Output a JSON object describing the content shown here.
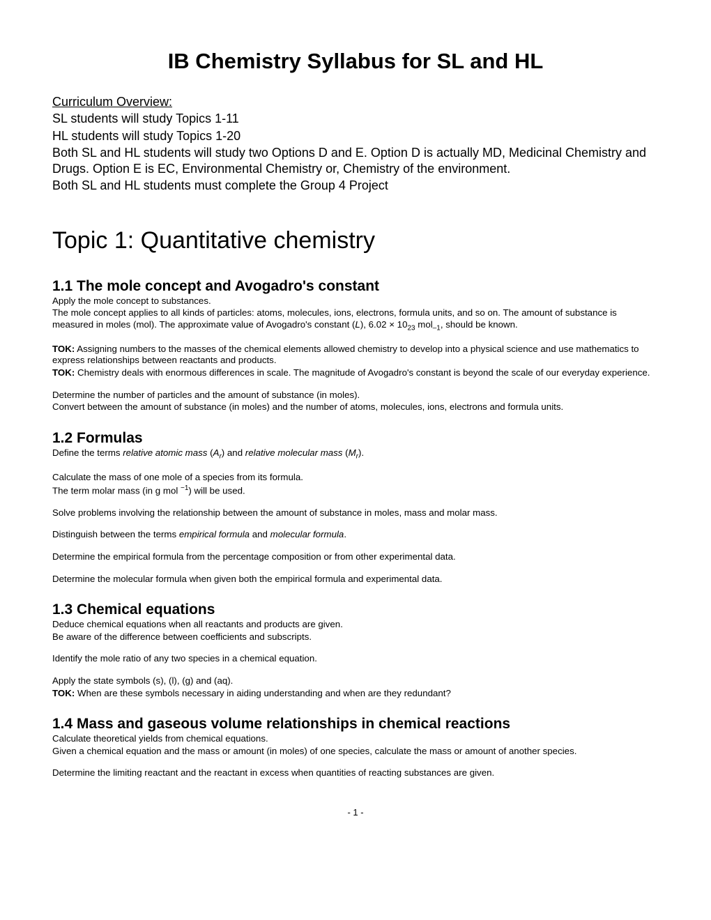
{
  "mainTitle": "IB Chemistry Syllabus for SL and HL",
  "overview": {
    "heading": "Curriculum Overview:",
    "lines": [
      "SL students will study Topics 1-11",
      "HL students will study Topics 1-20",
      "Both SL and HL students will study two Options D and E.  Option D is actually MD, Medicinal Chemistry and Drugs.  Option E is EC, Environmental Chemistry or, Chemistry of the environment.",
      "Both SL and HL students must complete the Group 4 Project"
    ]
  },
  "topicTitle": "Topic 1: Quantitative chemistry",
  "section11": {
    "heading": "1.1 The mole concept and Avogadro's constant",
    "p1": "Apply the mole concept to substances.",
    "p2a": "The mole concept applies to all kinds of particles: atoms, molecules, ions, electrons, formula units, and so on. The amount of substance is measured in moles (mol). The approximate value of Avogadro's constant (",
    "p2b": "L",
    "p2c": "), 6.02 × 10",
    "p2d": "23",
    "p2e": " mol",
    "p2f": "–1",
    "p2g": ", should be known.",
    "tok1label": "TOK:",
    "tok1": " Assigning numbers to the masses of the chemical elements allowed chemistry to develop into a physical science and use mathematics to express relationships between reactants and products.",
    "tok2label": "TOK:",
    "tok2": " Chemistry deals with enormous differences in scale. The magnitude of Avogadro's constant is beyond the scale of our everyday experience.",
    "p3": "Determine the number of particles and the amount of substance (in moles).",
    "p4": "Convert between the amount of substance (in moles) and the number of atoms, molecules, ions, electrons and formula units."
  },
  "section12": {
    "heading": "1.2 Formulas",
    "p1a": "Define the terms ",
    "p1b": "relative atomic mass",
    "p1c": " (",
    "p1d": "A",
    "p1e": "r",
    "p1f": ") and ",
    "p1g": "relative molecular mass",
    "p1h": " (",
    "p1i": "M",
    "p1j": "r",
    "p1k": ").",
    "p2": "Calculate the mass of one mole of a species from its formula.",
    "p3a": "The term molar mass (in g mol ",
    "p3b": "−1",
    "p3c": ") will be used.",
    "p4": "Solve problems involving the relationship between the amount of substance in moles, mass and molar mass.",
    "p5a": "Distinguish between the terms ",
    "p5b": "empirical formula",
    "p5c": " and ",
    "p5d": "molecular formula",
    "p5e": ".",
    "p6": "Determine the empirical formula from the percentage composition or from other experimental data.",
    "p7": "Determine the molecular formula when given both the empirical formula and experimental data."
  },
  "section13": {
    "heading": "1.3 Chemical equations",
    "p1": "Deduce chemical equations when all reactants and products are given.",
    "p2": "Be aware of the difference between coefficients and subscripts.",
    "p3": "Identify the mole ratio of any two species in a chemical equation.",
    "p4": "Apply the state symbols (s), (l), (g) and (aq).",
    "tok1label": "TOK:",
    "tok1": " When are these symbols necessary in aiding understanding and when are they redundant?"
  },
  "section14": {
    "heading": "1.4 Mass and gaseous volume relationships in chemical reactions",
    "p1": "Calculate theoretical yields from chemical equations.",
    "p2": "Given a chemical equation and the mass or amount (in moles) of one species, calculate the mass or amount of another species.",
    "p3": "Determine the limiting reactant and the reactant in excess when quantities of reacting substances are given."
  },
  "pageNumber": "- 1 -"
}
